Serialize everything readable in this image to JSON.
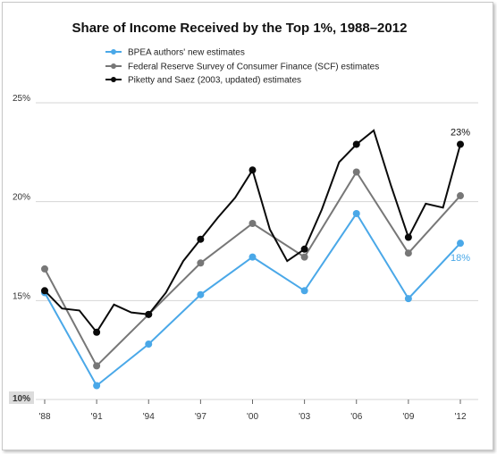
{
  "chart_data": {
    "type": "line",
    "title": "Share of Income Received by the Top 1%, 1988–2012",
    "x_tick_labels": [
      "'88",
      "'91",
      "'94",
      "'97",
      "'00",
      "'03",
      "'06",
      "'09",
      "'12"
    ],
    "x_ticks": [
      1988,
      1991,
      1994,
      1997,
      2000,
      2003,
      2006,
      2009,
      2012
    ],
    "y_tick_labels": [
      "25%",
      "20%",
      "15%",
      "10%"
    ],
    "y_ticks": [
      25,
      20,
      15,
      10
    ],
    "xlim": [
      1988,
      2012
    ],
    "ylim": [
      10,
      25
    ],
    "grid": true,
    "legend_position": "top-left",
    "series": [
      {
        "name": "BPEA authors' new estimates",
        "color": "#4aa8e8",
        "markers": true,
        "x": [
          1988,
          1991,
          1994,
          1997,
          2000,
          2003,
          2006,
          2009,
          2012
        ],
        "y": [
          15.4,
          10.7,
          12.8,
          15.3,
          17.2,
          15.5,
          19.4,
          15.1,
          17.9
        ]
      },
      {
        "name": "Federal Reserve Survey of Consumer Finance (SCF) estimates",
        "color": "#777777",
        "markers": true,
        "x": [
          1988,
          1991,
          1994,
          1997,
          2000,
          2003,
          2006,
          2009,
          2012
        ],
        "y": [
          16.6,
          11.7,
          14.3,
          16.9,
          18.9,
          17.2,
          21.5,
          17.4,
          20.3
        ]
      },
      {
        "name": "Piketty and Saez (2003, updated) estimates",
        "color": "#0a0a0a",
        "markers_at": [
          1988,
          1991,
          1994,
          1997,
          2000,
          2003,
          2006,
          2009,
          2012
        ],
        "x": [
          1988,
          1989,
          1990,
          1991,
          1992,
          1993,
          1994,
          1995,
          1996,
          1997,
          1998,
          1999,
          2000,
          2001,
          2002,
          2003,
          2004,
          2005,
          2006,
          2007,
          2008,
          2009,
          2010,
          2011,
          2012
        ],
        "y": [
          15.5,
          14.6,
          14.5,
          13.4,
          14.8,
          14.4,
          14.3,
          15.4,
          17.0,
          18.1,
          19.2,
          20.2,
          21.6,
          18.6,
          17.0,
          17.6,
          19.6,
          22.0,
          22.9,
          23.6,
          20.8,
          18.2,
          19.9,
          19.7,
          22.9
        ]
      }
    ],
    "annotations": [
      {
        "text": "23%",
        "series": 2,
        "x": 2012,
        "y": 22.9,
        "color": "#111111"
      },
      {
        "text": "18%",
        "series": 0,
        "x": 2012,
        "y": 17.9,
        "color": "#4aa8e8"
      }
    ]
  }
}
